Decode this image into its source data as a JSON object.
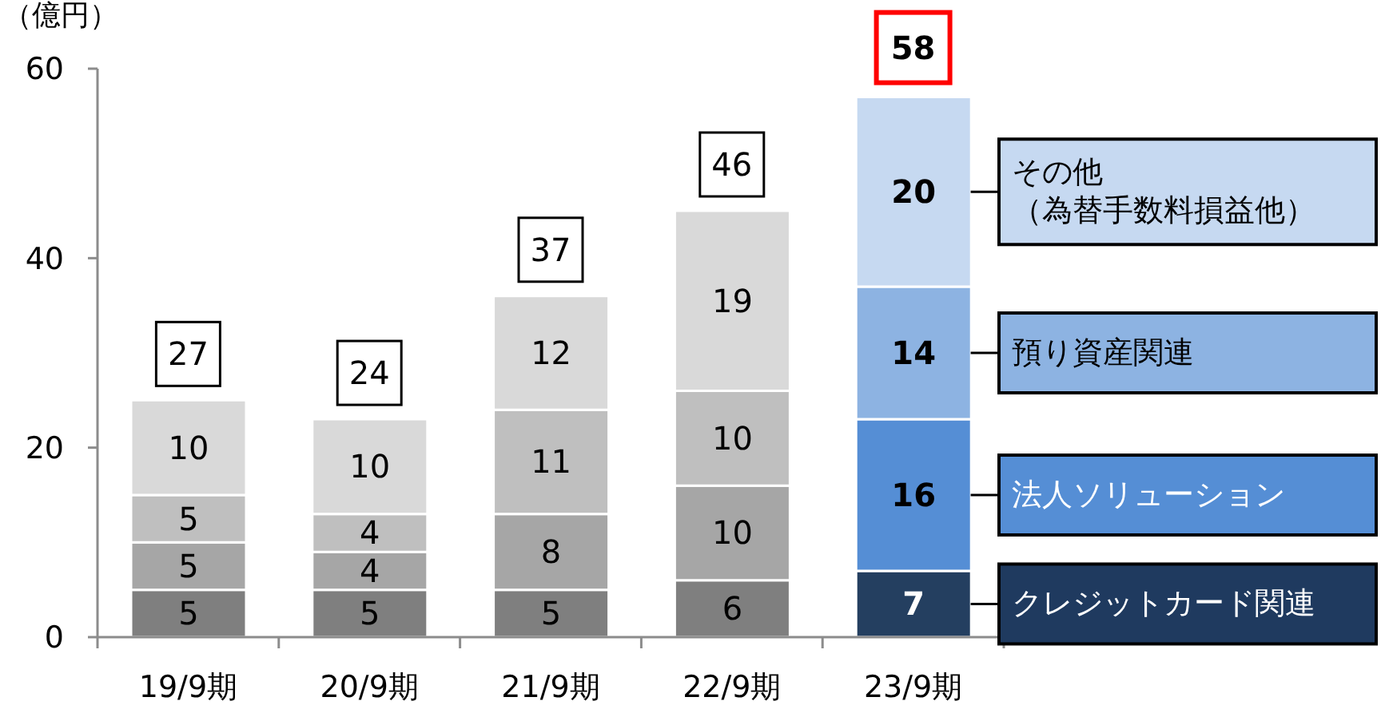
{
  "chart_data": {
    "type": "bar",
    "stacked": true,
    "ylabel": "（億円）",
    "categories": [
      "19/9期",
      "20/9期",
      "21/9期",
      "22/9期",
      "23/9期"
    ],
    "series": [
      {
        "name": "クレジットカード関連",
        "color": "#1f3a5f",
        "colors": [
          "#7f7f7f",
          "#7f7f7f",
          "#7f7f7f",
          "#7f7f7f",
          "#243f60"
        ],
        "values": [
          5,
          5,
          5,
          6,
          7
        ]
      },
      {
        "name": "法人ソリューション",
        "color": "#558ed5",
        "colors": [
          "#a6a6a6",
          "#a6a6a6",
          "#a6a6a6",
          "#a6a6a6",
          "#558ed5"
        ],
        "values": [
          5,
          4,
          8,
          10,
          16
        ]
      },
      {
        "name": "預り資産関連",
        "color": "#8db3e2",
        "colors": [
          "#bfbfbf",
          "#bfbfbf",
          "#bfbfbf",
          "#bfbfbf",
          "#8db3e2"
        ],
        "values": [
          5,
          4,
          11,
          10,
          14
        ]
      },
      {
        "name": "その他（為替手数料損益他）",
        "color": "#c6d9f1",
        "colors": [
          "#d9d9d9",
          "#d9d9d9",
          "#d9d9d9",
          "#d9d9d9",
          "#c6d9f1"
        ],
        "values": [
          10,
          10,
          12,
          19,
          20
        ]
      }
    ],
    "ylim": [
      0,
      60
    ],
    "yticks": [
      0,
      20,
      40,
      60
    ],
    "grid": false,
    "legend": "right",
    "data_labels": true,
    "totals": [
      "27",
      "24",
      "37",
      "46",
      "58"
    ]
  }
}
